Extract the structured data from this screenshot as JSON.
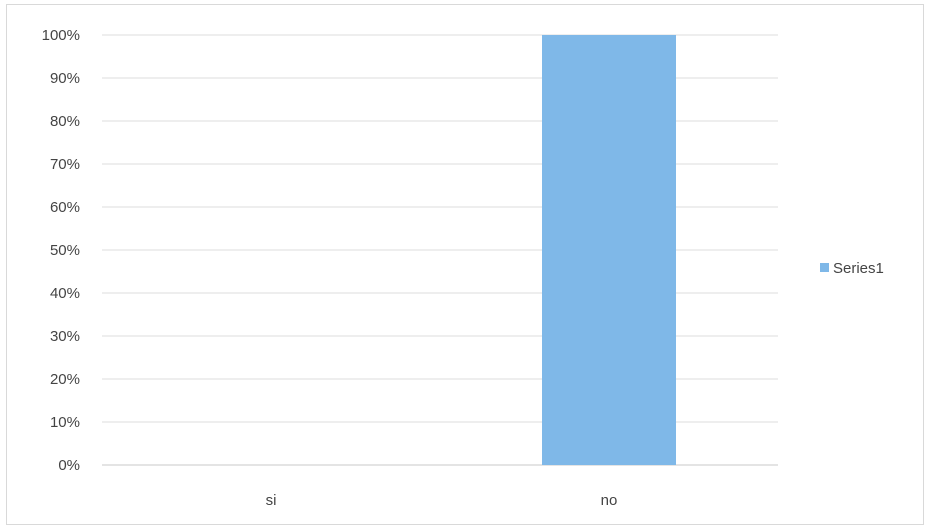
{
  "chart_data": {
    "type": "bar",
    "categories": [
      "si",
      "no"
    ],
    "series": [
      {
        "name": "Series1",
        "values": [
          0,
          100
        ],
        "color": "#7fb8e8"
      }
    ],
    "y_ticks": [
      "0%",
      "10%",
      "20%",
      "30%",
      "40%",
      "50%",
      "60%",
      "70%",
      "80%",
      "90%",
      "100%"
    ],
    "ylim": [
      0,
      100
    ],
    "y_unit": "%",
    "grid": true,
    "legend": "right",
    "title": "",
    "xlabel": "",
    "ylabel": ""
  }
}
